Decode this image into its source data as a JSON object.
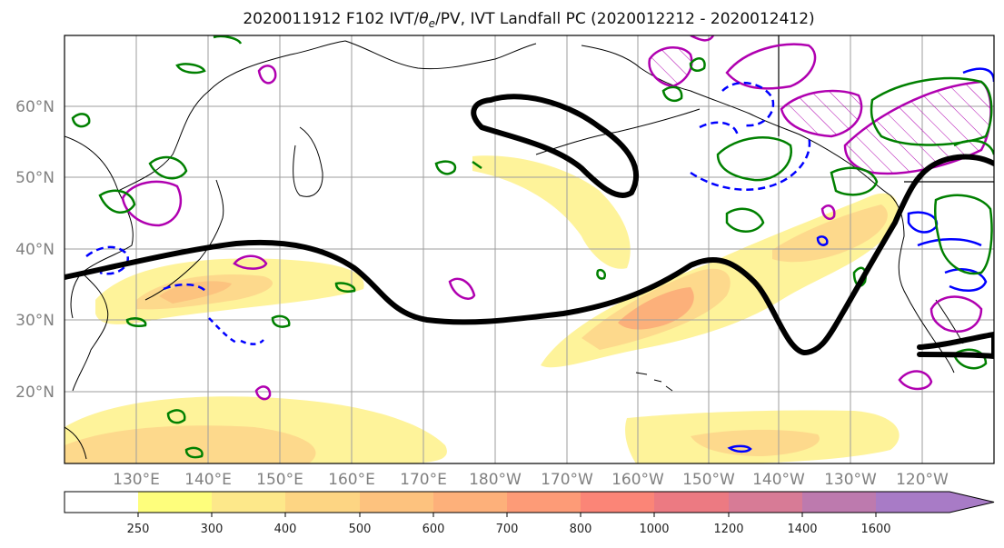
{
  "title": "2020011912 F102 IVT/θe/PV, IVT Landfall PC (2020012212 - 2020012412)",
  "title_parts": {
    "pre": "2020011912 F102 IVT/",
    "theta": "θ",
    "sub": "e",
    "post": "/PV, IVT Landfall PC (2020012212 - 2020012412)"
  },
  "map": {
    "projection": "PlateCarree",
    "lat_range": [
      10,
      70
    ],
    "lon_range": [
      120,
      250
    ],
    "lat_labels": [
      "20°N",
      "30°N",
      "40°N",
      "50°N",
      "60°N"
    ],
    "lon_labels": [
      "130°E",
      "140°E",
      "150°E",
      "160°E",
      "170°E",
      "180°W",
      "170°W",
      "160°W",
      "150°W",
      "140°W",
      "130°W",
      "120°W"
    ],
    "gridlines": true,
    "colors": {
      "coastline": "#000000",
      "gridline": "#9e9e9e",
      "landfall_pc_contour": "#000000",
      "theta_e_solid": "#0000ff",
      "theta_e_dashed": "#0000ff",
      "pv_contour": "#008000",
      "pv_hatched": "#b000b0"
    }
  },
  "colorbar": {
    "orientation": "horizontal",
    "extend": "max",
    "levels": [
      250,
      300,
      400,
      500,
      600,
      700,
      800,
      1000,
      1200,
      1400,
      1600
    ],
    "colors": [
      "#ffffff",
      "#fefe7c",
      "#fde88a",
      "#fdd583",
      "#fdc27e",
      "#fdb07a",
      "#fd9b77",
      "#fb8577",
      "#ec7a82",
      "#d77b96",
      "#bd7aae",
      "#a87bc6"
    ],
    "labels": [
      "250",
      "300",
      "400",
      "500",
      "600",
      "700",
      "800",
      "1000",
      "1200",
      "1400",
      "1600"
    ]
  }
}
